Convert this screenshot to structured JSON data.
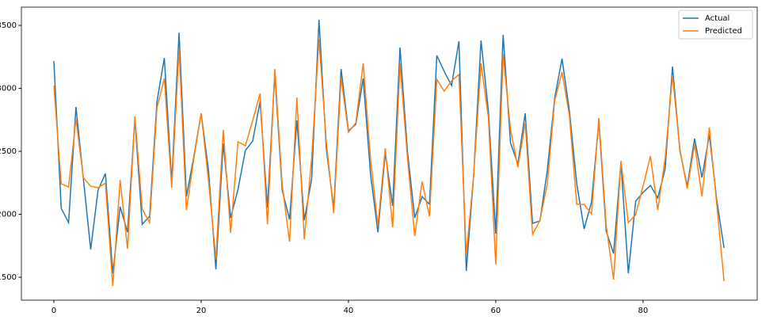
{
  "chart_data": {
    "type": "line",
    "x": [
      0,
      1,
      2,
      3,
      4,
      5,
      6,
      7,
      8,
      9,
      10,
      11,
      12,
      13,
      14,
      15,
      16,
      17,
      18,
      19,
      20,
      21,
      22,
      23,
      24,
      25,
      26,
      27,
      28,
      29,
      30,
      31,
      32,
      33,
      34,
      35,
      36,
      37,
      38,
      39,
      40,
      41,
      42,
      43,
      44,
      45,
      46,
      47,
      48,
      49,
      50,
      51,
      52,
      53,
      54,
      55,
      56,
      57,
      58,
      59,
      60,
      61,
      62,
      63,
      64,
      65,
      66,
      67,
      68,
      69,
      70,
      71,
      72,
      73,
      74,
      75,
      76,
      77,
      78,
      79,
      80,
      81,
      82,
      83,
      84,
      85,
      86,
      87,
      88,
      89,
      90,
      91
    ],
    "series": [
      {
        "name": "Actual",
        "color": "#1f77b4",
        "values": [
          3217,
          2047,
          1934,
          2852,
          2286,
          1720,
          2192,
          2324,
          1531,
          2060,
          1858,
          2758,
          1921,
          1984,
          2896,
          3242,
          2255,
          3443,
          2141,
          2456,
          2802,
          2349,
          1563,
          2563,
          1972,
          2198,
          2506,
          2582,
          2896,
          2053,
          3116,
          2192,
          1959,
          2745,
          1953,
          2280,
          3544,
          2519,
          2047,
          3154,
          2663,
          2714,
          3079,
          2317,
          1858,
          2487,
          2066,
          3324,
          2506,
          1972,
          2141,
          2079,
          3261,
          3135,
          3022,
          3374,
          1550,
          2311,
          3380,
          2821,
          1846,
          3425,
          2569,
          2399,
          2802,
          1928,
          1947,
          2349,
          2921,
          3236,
          2821,
          2242,
          1884,
          2097,
          2739,
          1865,
          1688,
          2412,
          1531,
          2104,
          2173,
          2229,
          2129,
          2361,
          3173,
          2506,
          2223,
          2601,
          2292,
          2632,
          2116,
          1733
        ]
      },
      {
        "name": "Predicted",
        "color": "#ff7f0e",
        "values": [
          3022,
          2242,
          2217,
          2758,
          2292,
          2223,
          2211,
          2248,
          1431,
          2273,
          1726,
          2777,
          2041,
          1934,
          2846,
          3079,
          2211,
          3311,
          2034,
          2443,
          2802,
          2267,
          1644,
          2670,
          1852,
          2576,
          2544,
          2745,
          2959,
          1921,
          3154,
          2236,
          1783,
          2928,
          1802,
          2443,
          3387,
          2569,
          2009,
          3085,
          2651,
          2726,
          3198,
          2437,
          1909,
          2525,
          1896,
          3198,
          2456,
          1827,
          2261,
          1984,
          3072,
          2978,
          3060,
          3110,
          1676,
          2311,
          3198,
          2770,
          1601,
          3273,
          2676,
          2374,
          2726,
          1840,
          1953,
          2242,
          2902,
          3129,
          2783,
          2079,
          2079,
          2003,
          2764,
          1909,
          1481,
          2424,
          1934,
          1997,
          2223,
          2462,
          2034,
          2443,
          3104,
          2519,
          2204,
          2557,
          2141,
          2689,
          2085,
          1469
        ]
      }
    ],
    "xlim": [
      -4.41,
      95.5
    ],
    "xticks": [
      0,
      20,
      40,
      60,
      80
    ],
    "ylim": [
      1318,
      3645
    ],
    "yticks": [
      1500,
      2000,
      2500,
      3000,
      3500
    ],
    "legend": "upper right"
  }
}
